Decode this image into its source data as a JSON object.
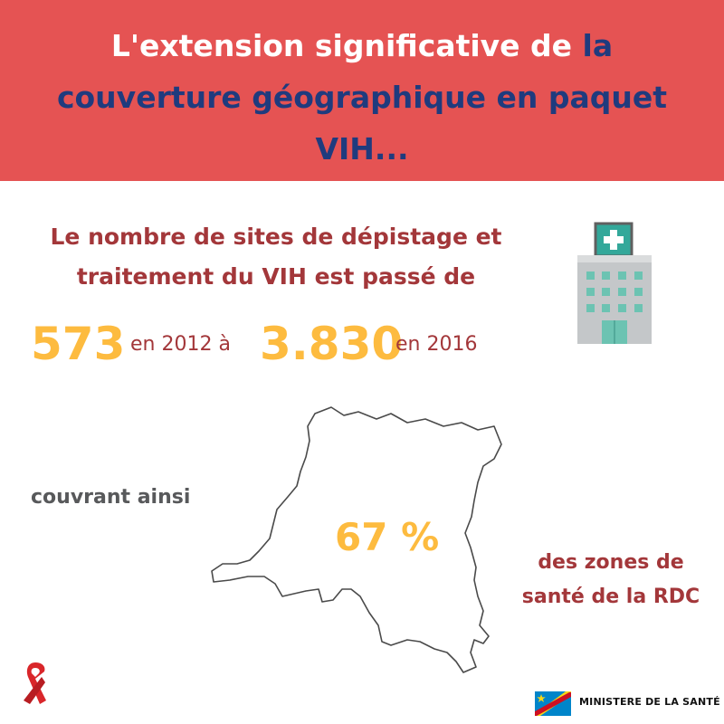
{
  "header": {
    "title_part1": "L'extension significative de ",
    "title_part2": "la couverture géographique en paquet VIH..."
  },
  "stats": {
    "subtitle": "Le nombre de sites de dépistage et traitement du VIH est passé de",
    "start_value": "573",
    "start_year_text": "en 2012 à",
    "end_value": "3.830",
    "end_year_text": "en 2016"
  },
  "coverage": {
    "intro": "couvrant ainsi",
    "percent": "67 %",
    "zones_text": "des zones de santé de la RDC"
  },
  "footer": {
    "ministry": "MINISTERE DE LA SANTÉ"
  },
  "colors": {
    "header_bg": "#e55353",
    "title_blue": "#1f3b7e",
    "accent_yellow": "#fdbb3f",
    "text_red": "#a3373a",
    "text_gray": "#58595b"
  },
  "icons": [
    "hospital-building-icon",
    "drc-map-outline",
    "aids-ribbon-icon",
    "drc-flag-icon"
  ]
}
